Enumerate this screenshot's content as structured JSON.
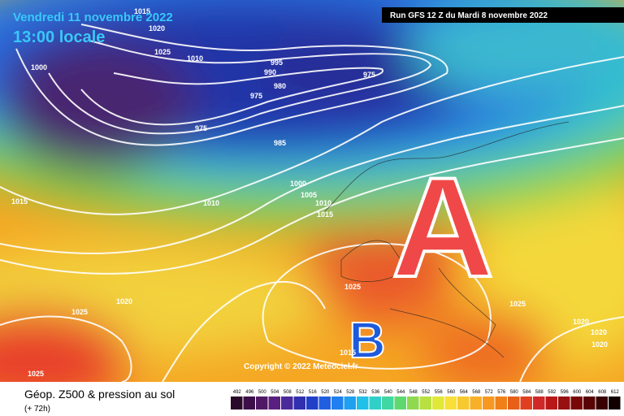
{
  "header": {
    "date": "Vendredi 11 novembre 2022",
    "time": "13:00 locale",
    "run": "Run GFS 12 Z du Mardi 8 novembre 2022"
  },
  "map": {
    "high": "A",
    "low": "B",
    "copyright": "Copyright © 2022 Meteociel.fr",
    "isobar_labels": [
      "1015",
      "1020",
      "1025",
      "1010",
      "1010",
      "1000",
      "995",
      "990",
      "980",
      "975",
      "975",
      "975",
      "985",
      "1000",
      "1005",
      "1010",
      "1015",
      "1015",
      "1020",
      "1025",
      "1025",
      "1025",
      "1015",
      "1025",
      "1020",
      "1020",
      "1020"
    ]
  },
  "footer": {
    "title": "Géop. Z500 & pression au sol",
    "lead": "(+ 72h)",
    "scale": [
      "492",
      "496",
      "500",
      "504",
      "508",
      "512",
      "516",
      "520",
      "524",
      "528",
      "532",
      "536",
      "540",
      "544",
      "548",
      "552",
      "556",
      "560",
      "564",
      "568",
      "572",
      "576",
      "580",
      "584",
      "588",
      "592",
      "596",
      "600",
      "604",
      "608",
      "612"
    ]
  }
}
